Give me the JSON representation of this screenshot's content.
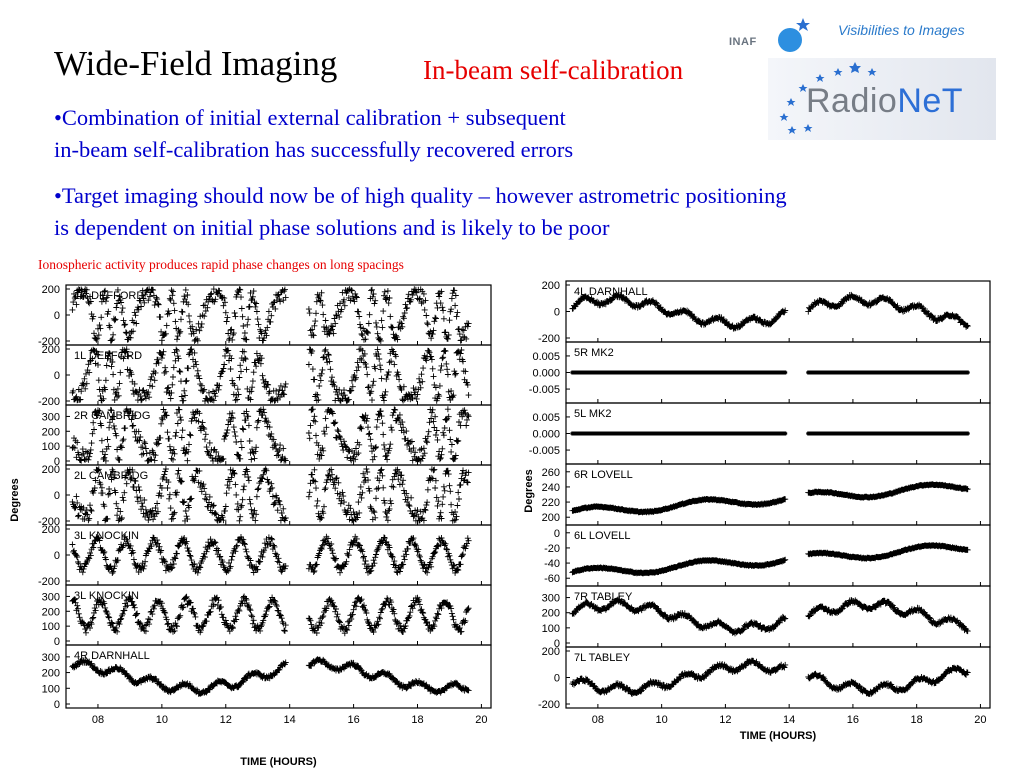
{
  "slide": {
    "title": "Wide-Field Imaging",
    "subtitle": "In-beam self-calibration",
    "bullets": [
      {
        "line1": "•Combination of initial external calibration + subsequent",
        "line2": "in-beam self-calibration has successfully recovered errors"
      },
      {
        "line1": "•Target imaging should now be of high quality – however astrometric positioning",
        "line2": "is dependent on initial phase solutions and is likely to be poor"
      }
    ],
    "caption": "Ionospheric activity produces rapid phase changes on long spacings"
  },
  "logo": {
    "tagline": "Visibilities to Images",
    "inaf": "INAF",
    "brand_part1": "Radio",
    "brand_part2": "NeT",
    "accent_color": "#2d6fd6"
  },
  "chart_data": [
    {
      "type": "scatter",
      "xlabel": "TIME (HOURS)",
      "ylabel": "Degrees",
      "xlim": [
        7,
        20.3
      ],
      "x_ticks": [
        "08",
        "10",
        "12",
        "14",
        "16",
        "18",
        "20"
      ],
      "marker": "+",
      "panels": [
        {
          "name": "1R DEFFORD",
          "ylim": [
            -200,
            200
          ],
          "y_ticks": [
            "200",
            "0",
            "-200"
          ],
          "behavior": "rapid phase wraps spanning -180 to 180",
          "data_gap_hours": [
            13.9,
            14.6
          ]
        },
        {
          "name": "1L DEFFORD",
          "ylim": [
            -200,
            200
          ],
          "y_ticks": [
            "200",
            "0",
            "-200"
          ],
          "behavior": "rapid phase wraps spanning -180 to 180",
          "data_gap_hours": [
            13.9,
            14.6
          ]
        },
        {
          "name": "2R CAMBRIDG",
          "ylim": [
            0,
            350
          ],
          "y_ticks": [
            "300",
            "200",
            "100",
            "0"
          ],
          "behavior": "rapid phase wraps spanning 0 to 360",
          "data_gap_hours": [
            13.9,
            14.6
          ]
        },
        {
          "name": "2L CAMBRIDG",
          "ylim": [
            -200,
            200
          ],
          "y_ticks": [
            "200",
            "0",
            "-200"
          ],
          "behavior": "rapid phase wraps spanning -180 to 180",
          "data_gap_hours": [
            13.9,
            14.6
          ]
        },
        {
          "name": "3L KNOCKIN",
          "ylim": [
            -200,
            200
          ],
          "y_ticks": [
            "200",
            "0",
            "-200"
          ],
          "behavior": "oscillating phase",
          "data_gap_hours": [
            13.9,
            14.6
          ]
        },
        {
          "name": "3L KNOCKIN",
          "ylim": [
            0,
            350
          ],
          "y_ticks": [
            "300",
            "200",
            "100",
            "0"
          ],
          "behavior": "oscillating phase with wraps",
          "data_gap_hours": [
            13.9,
            14.6
          ]
        },
        {
          "name": "4R DARNHALL",
          "ylim": [
            0,
            350
          ],
          "y_ticks": [
            "300",
            "200",
            "100",
            "0"
          ],
          "behavior": "slow drift",
          "data_gap_hours": [
            13.9,
            14.6
          ]
        }
      ]
    },
    {
      "type": "scatter",
      "xlabel": "TIME (HOURS)",
      "ylabel": "Degrees",
      "xlim": [
        7,
        20.3
      ],
      "x_ticks": [
        "08",
        "10",
        "12",
        "14",
        "16",
        "18",
        "20"
      ],
      "marker": "+",
      "panels": [
        {
          "name": "4L DARNHALL",
          "ylim": [
            -200,
            200
          ],
          "y_ticks": [
            "200",
            "0",
            "-200"
          ],
          "behavior": "slow drift with wraps",
          "data_gap_hours": [
            13.9,
            14.6
          ]
        },
        {
          "name": "5R MK2",
          "ylim": [
            -0.008,
            0.008
          ],
          "y_ticks": [
            "0.005",
            "0.000",
            "-0.005"
          ],
          "behavior": "constant zero (reference antenna)",
          "data_gap_hours": [
            13.9,
            14.6
          ]
        },
        {
          "name": "5L MK2",
          "ylim": [
            -0.008,
            0.008
          ],
          "y_ticks": [
            "0.005",
            "0.000",
            "-0.005"
          ],
          "behavior": "constant zero (reference antenna)",
          "data_gap_hours": [
            13.9,
            14.6
          ]
        },
        {
          "name": "6R LOVELL",
          "ylim": [
            195,
            265
          ],
          "y_ticks": [
            "260",
            "240",
            "220",
            "200"
          ],
          "behavior": "smooth slow variation",
          "data_gap_hours": [
            13.9,
            14.6
          ]
        },
        {
          "name": "6L LOVELL",
          "ylim": [
            -65,
            5
          ],
          "y_ticks": [
            "0",
            "-20",
            "-40",
            "-60"
          ],
          "behavior": "smooth slow variation",
          "data_gap_hours": [
            13.9,
            14.6
          ]
        },
        {
          "name": "7R TABLEY",
          "ylim": [
            0,
            350
          ],
          "y_ticks": [
            "300",
            "200",
            "100",
            "0"
          ],
          "behavior": "slow drift",
          "data_gap_hours": [
            13.9,
            14.6
          ]
        },
        {
          "name": "7L TABLEY",
          "ylim": [
            -200,
            200
          ],
          "y_ticks": [
            "200",
            "0",
            "-200"
          ],
          "behavior": "slow drift with wraps",
          "data_gap_hours": [
            13.9,
            14.6
          ]
        }
      ]
    }
  ]
}
